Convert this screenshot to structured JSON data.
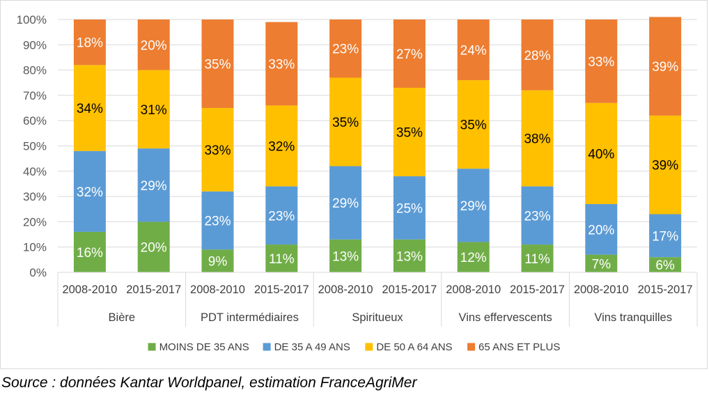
{
  "chart_data": {
    "type": "bar",
    "stacked": true,
    "normalized": true,
    "title": "",
    "xlabel": "",
    "ylabel": "",
    "ylim": [
      0,
      100
    ],
    "yticks": [
      "0%",
      "10%",
      "20%",
      "30%",
      "40%",
      "50%",
      "60%",
      "70%",
      "80%",
      "90%",
      "100%"
    ],
    "groups": [
      {
        "name": "Bière",
        "periods": [
          "2008-2010",
          "2015-2017"
        ]
      },
      {
        "name": "PDT intermédiaires",
        "periods": [
          "2008-2010",
          "2015-2017"
        ]
      },
      {
        "name": "Spiritueux",
        "periods": [
          "2008-2010",
          "2015-2017"
        ]
      },
      {
        "name": "Vins effervescents",
        "periods": [
          "2008-2010",
          "2015-2017"
        ]
      },
      {
        "name": "Vins tranquilles",
        "periods": [
          "2008-2010",
          "2015-2017"
        ]
      }
    ],
    "series": [
      {
        "name": "MOINS DE 35 ANS",
        "color": "#70ad47",
        "values": [
          16,
          20,
          9,
          11,
          13,
          13,
          12,
          11,
          7,
          6
        ]
      },
      {
        "name": "DE 35 A 49 ANS",
        "color": "#5b9bd5",
        "values": [
          32,
          29,
          23,
          23,
          29,
          25,
          29,
          23,
          20,
          17
        ]
      },
      {
        "name": "DE 50 A 64 ANS",
        "color": "#ffc000",
        "values": [
          34,
          31,
          33,
          32,
          35,
          35,
          35,
          38,
          40,
          39
        ]
      },
      {
        "name": "65 ANS ET PLUS",
        "color": "#ed7d31",
        "values": [
          18,
          20,
          35,
          33,
          23,
          27,
          24,
          28,
          33,
          39
        ]
      }
    ],
    "legend_position": "bottom",
    "grid": true
  },
  "source": "Source : données Kantar Worldpanel, estimation FranceAgriMer"
}
